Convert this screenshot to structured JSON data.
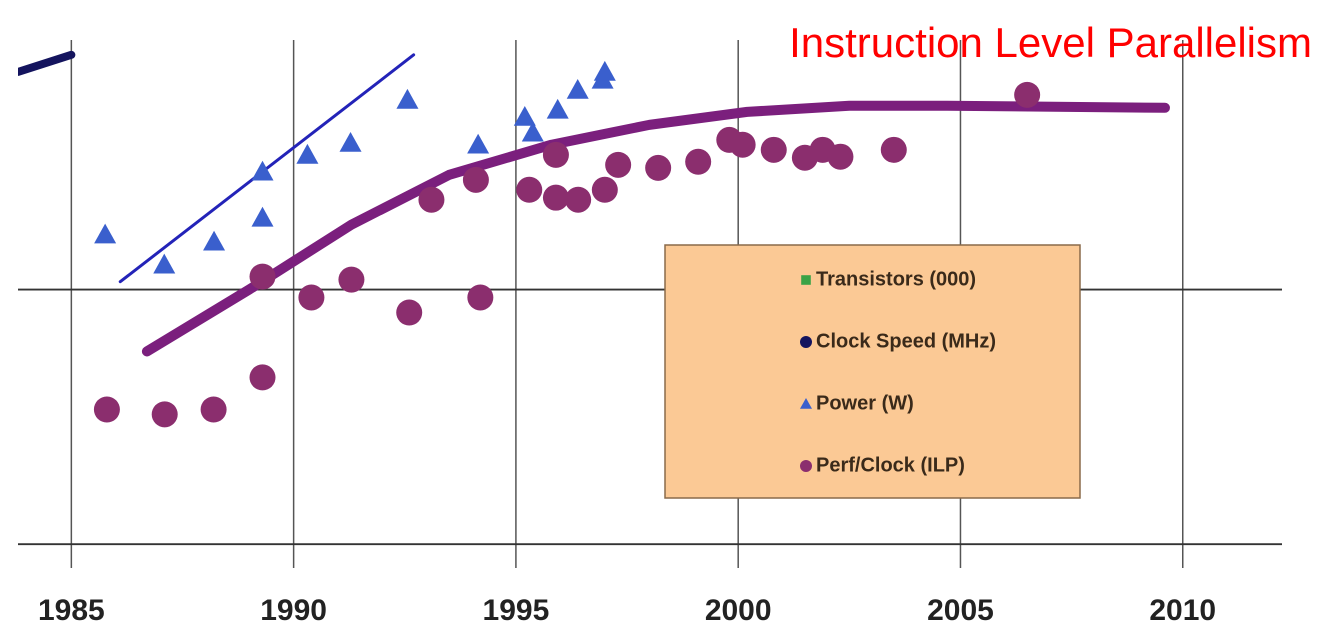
{
  "chart_data": {
    "type": "scatter",
    "title": "Instruction Level Parallelism",
    "xlim": [
      1983.8,
      2012.3
    ],
    "xticks": [
      1985,
      1990,
      1995,
      2000,
      2005,
      2010
    ],
    "ylim": [
      -0.18,
      2.0
    ],
    "grid": true,
    "legend": "right",
    "series": [
      {
        "name": "Transistors (000)",
        "color": "#3aa346",
        "marker": "square",
        "x": [],
        "values": []
      },
      {
        "name": "Clock Speed (MHz)",
        "color": "#14145e",
        "marker": "circle",
        "x": [],
        "values": [],
        "trend": {
          "color": "#14145e",
          "x": [
            1983.8,
            1985.0
          ],
          "values": [
            1.855,
            1.922
          ]
        }
      },
      {
        "name": "Power (W)",
        "color": "#3a5fcd",
        "marker": "triangle",
        "x": [
          1985.76,
          1987.09,
          1988.21,
          1989.3,
          1989.3,
          1990.31,
          1991.28,
          1992.56,
          1994.15,
          1995.2,
          1995.38,
          1995.94,
          1996.39,
          1996.95,
          1997.0
        ],
        "values": [
          1.216,
          1.098,
          1.188,
          1.282,
          1.463,
          1.529,
          1.576,
          1.745,
          1.569,
          1.678,
          1.616,
          1.706,
          1.784,
          1.824,
          1.855
        ],
        "trend": {
          "color": "#2323b8",
          "x": [
            1986.1,
            1992.7
          ],
          "values": [
            1.031,
            1.922
          ]
        }
      },
      {
        "name": "Perf/Clock (ILP)",
        "color": "#8b2e6e",
        "marker": "circle",
        "x": [
          1985.8,
          1987.1,
          1988.2,
          1989.3,
          1989.3,
          1990.4,
          1991.3,
          1992.6,
          1994.2,
          1993.1,
          1994.1,
          1995.3,
          1995.9,
          1995.9,
          1996.4,
          1997.0,
          1997.3,
          1998.2,
          1999.1,
          1999.8,
          2000.1,
          2000.8,
          2001.5,
          2001.9,
          2002.3,
          2003.5,
          2006.5
        ],
        "values": [
          0.529,
          0.51,
          0.529,
          0.655,
          1.051,
          0.969,
          1.039,
          0.91,
          0.969,
          1.353,
          1.431,
          1.392,
          1.529,
          1.361,
          1.353,
          1.392,
          1.49,
          1.478,
          1.502,
          1.588,
          1.569,
          1.549,
          1.518,
          1.549,
          1.522,
          1.549,
          1.765
        ],
        "trend": {
          "color": "#7b1f7d",
          "x": [
            1986.7,
            1989.0,
            1991.3,
            1993.5,
            1995.8,
            1998.0,
            2000.2,
            2002.5,
            2004.7,
            2009.6
          ],
          "values": [
            0.757,
            1.0,
            1.255,
            1.451,
            1.569,
            1.647,
            1.698,
            1.722,
            1.722,
            1.714
          ]
        }
      }
    ],
    "ygridlines": [
      0,
      1
    ]
  }
}
